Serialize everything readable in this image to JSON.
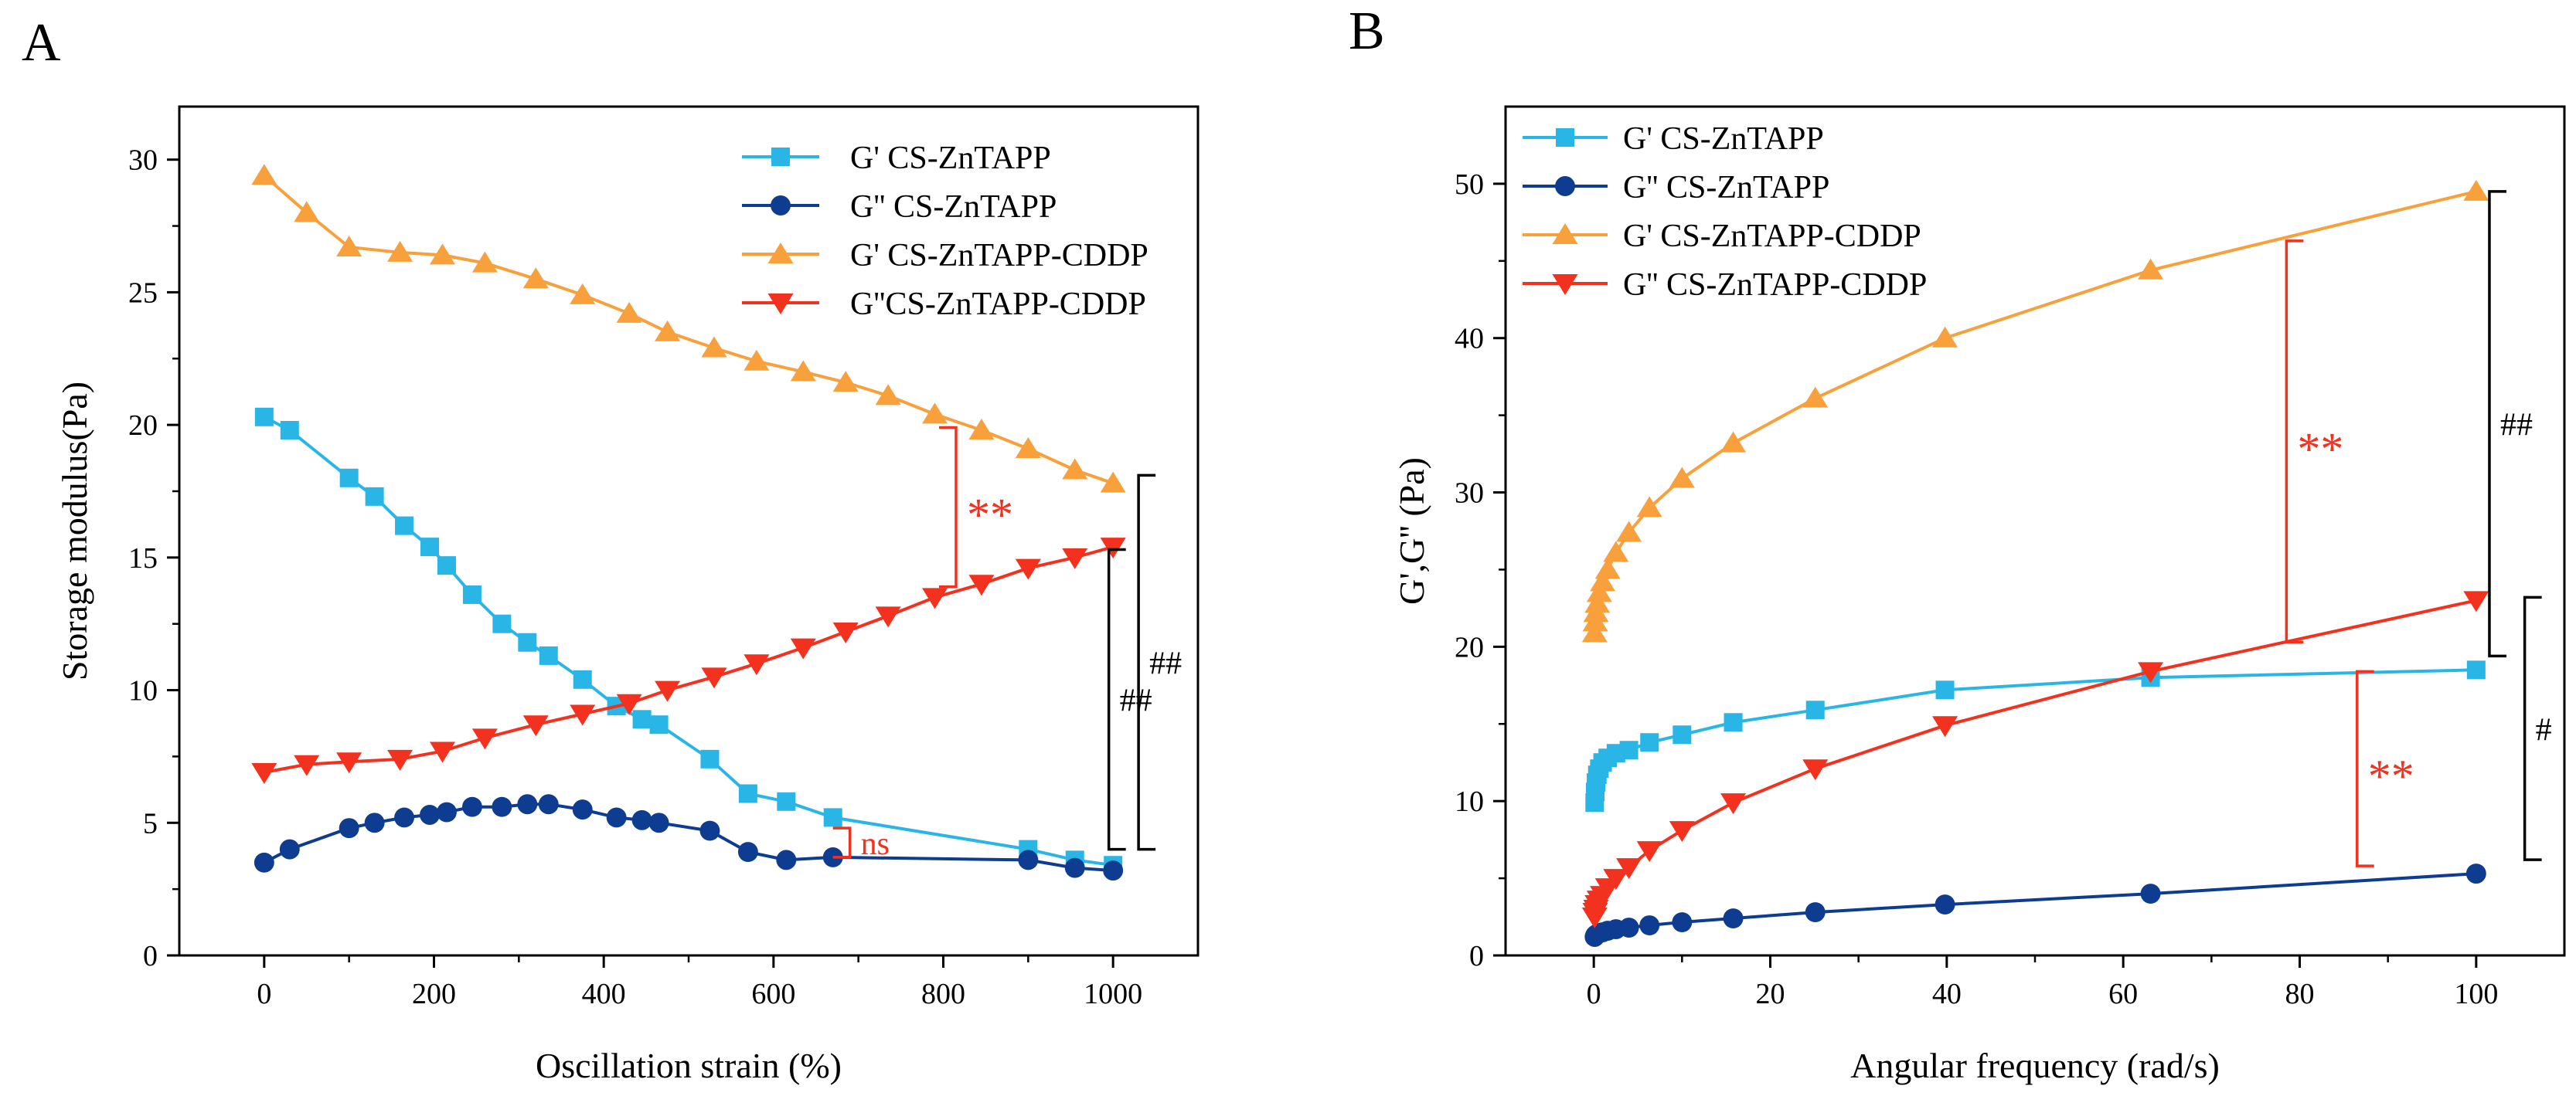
{
  "chart_data": [
    {
      "type": "line",
      "panel_label": "A",
      "xlabel": "Oscillation strain (%)",
      "ylabel": "Storage modulus(Pa)",
      "xlim": [
        -100,
        1100
      ],
      "ylim": [
        0,
        32
      ],
      "xticks": [
        0,
        200,
        400,
        600,
        800,
        1000
      ],
      "yticks": [
        0,
        5,
        10,
        15,
        20,
        25,
        30
      ],
      "grid": false,
      "legend_position": "top-right",
      "series": [
        {
          "name": "G' CS-ZnTAPP",
          "color": "#29B6E6",
          "marker": "square",
          "x": [
            0,
            30,
            100,
            130,
            165,
            195,
            215,
            245,
            280,
            310,
            335,
            375,
            415,
            445,
            465,
            525,
            570,
            615,
            670,
            900,
            955,
            1000
          ],
          "y": [
            20.3,
            19.8,
            18.0,
            17.3,
            16.2,
            15.4,
            14.7,
            13.6,
            12.5,
            11.8,
            11.3,
            10.4,
            9.4,
            8.9,
            8.7,
            7.4,
            6.1,
            5.8,
            5.2,
            4.0,
            3.6,
            3.4
          ]
        },
        {
          "name": "G'' CS-ZnTAPP",
          "color": "#0E3C91",
          "marker": "circle",
          "x": [
            0,
            30,
            100,
            130,
            165,
            195,
            215,
            245,
            280,
            310,
            335,
            375,
            415,
            445,
            465,
            525,
            570,
            615,
            670,
            900,
            955,
            1000
          ],
          "y": [
            3.5,
            4.0,
            4.8,
            5.0,
            5.2,
            5.3,
            5.4,
            5.6,
            5.6,
            5.7,
            5.7,
            5.5,
            5.2,
            5.1,
            5.0,
            4.7,
            3.9,
            3.6,
            3.7,
            3.6,
            3.3,
            3.2
          ]
        },
        {
          "name": "G' CS-ZnTAPP-CDDP",
          "color": "#F7A03C",
          "marker": "triangle-up",
          "x": [
            0,
            50,
            100,
            160,
            210,
            260,
            320,
            375,
            430,
            475,
            530,
            580,
            635,
            685,
            735,
            790,
            845,
            900,
            955,
            1000
          ],
          "y": [
            29.4,
            28.0,
            26.7,
            26.5,
            26.4,
            26.1,
            25.5,
            24.9,
            24.2,
            23.5,
            22.9,
            22.4,
            22.0,
            21.6,
            21.1,
            20.4,
            19.8,
            19.1,
            18.3,
            17.8
          ]
        },
        {
          "name": "G''CS-ZnTAPP-CDDP",
          "color": "#F2311F",
          "marker": "triangle-down",
          "x": [
            0,
            50,
            100,
            160,
            210,
            260,
            320,
            375,
            430,
            475,
            530,
            580,
            635,
            685,
            735,
            790,
            845,
            900,
            955,
            1000
          ],
          "y": [
            6.9,
            7.2,
            7.3,
            7.4,
            7.7,
            8.2,
            8.7,
            9.1,
            9.5,
            10.0,
            10.5,
            11.0,
            11.6,
            12.2,
            12.8,
            13.5,
            14.0,
            14.6,
            15.0,
            15.4
          ]
        }
      ],
      "annotations": [
        {
          "text": "**",
          "color": "#F2311F",
          "kind": "bracket-left",
          "x": 815,
          "y1": 19.9,
          "y2": 13.9
        },
        {
          "text": "ns",
          "color": "#F2311F",
          "kind": "bracket-left",
          "x": 690,
          "y1": 4.8,
          "y2": 3.7
        },
        {
          "text": "##",
          "color": "#000000",
          "kind": "bracket-right",
          "x": 995,
          "y1": 15.3,
          "y2": 4.0
        },
        {
          "text": "##",
          "color": "#000000",
          "kind": "bracket-right",
          "x": 1030,
          "y1": 18.1,
          "y2": 4.0
        }
      ]
    },
    {
      "type": "line",
      "panel_label": "B",
      "xlabel": "Angular frequency (rad/s)",
      "ylabel": "G',G'' (Pa)",
      "xlim": [
        -10,
        110
      ],
      "ylim": [
        0,
        55
      ],
      "xticks": [
        0,
        20,
        40,
        60,
        80,
        100
      ],
      "yticks": [
        0,
        10,
        20,
        30,
        40,
        50
      ],
      "grid": false,
      "legend_position": "top-left",
      "series": [
        {
          "name": "G' CS-ZnTAPP",
          "color": "#29B6E6",
          "marker": "square",
          "x": [
            0.1,
            0.16,
            0.25,
            0.4,
            0.63,
            1.0,
            1.58,
            2.51,
            3.98,
            6.31,
            10,
            15.8,
            25.1,
            39.8,
            63.1,
            100
          ],
          "y": [
            9.9,
            10.6,
            11.2,
            11.7,
            12.1,
            12.5,
            12.8,
            13.1,
            13.3,
            13.8,
            14.3,
            15.1,
            15.9,
            17.2,
            18.0,
            18.5
          ]
        },
        {
          "name": "G'' CS-ZnTAPP",
          "color": "#0E3C91",
          "marker": "circle",
          "x": [
            0.1,
            0.16,
            0.25,
            0.4,
            0.63,
            1.0,
            1.58,
            2.51,
            3.98,
            6.31,
            10,
            15.8,
            25.1,
            39.8,
            63.1,
            100
          ],
          "y": [
            1.2,
            1.3,
            1.35,
            1.4,
            1.45,
            1.5,
            1.6,
            1.7,
            1.8,
            1.95,
            2.15,
            2.4,
            2.8,
            3.3,
            4.0,
            5.3
          ]
        },
        {
          "name": "G' CS-ZnTAPP-CDDP",
          "color": "#F7A03C",
          "marker": "triangle-up",
          "x": [
            0.1,
            0.16,
            0.25,
            0.4,
            0.63,
            1.0,
            1.58,
            2.51,
            3.98,
            6.31,
            10,
            15.8,
            25.1,
            39.8,
            63.1,
            100
          ],
          "y": [
            20.9,
            21.6,
            22.2,
            22.8,
            23.5,
            24.2,
            25.0,
            26.1,
            27.4,
            29.0,
            30.9,
            33.2,
            36.1,
            40.0,
            44.4,
            49.5
          ]
        },
        {
          "name": "G'' CS-ZnTAPP-CDDP",
          "color": "#F2311F",
          "marker": "triangle-down",
          "x": [
            0.1,
            0.16,
            0.25,
            0.4,
            0.63,
            1.0,
            1.58,
            2.51,
            3.98,
            6.31,
            10,
            15.8,
            25.1,
            39.8,
            63.1,
            100
          ],
          "y": [
            2.5,
            2.8,
            3.0,
            3.3,
            3.6,
            3.9,
            4.4,
            5.0,
            5.7,
            6.8,
            8.1,
            9.9,
            12.1,
            14.9,
            18.4,
            23.0
          ]
        }
      ],
      "annotations": [
        {
          "text": "**",
          "color": "#F2311F",
          "kind": "bracket-right",
          "x": 78.5,
          "y1": 46.3,
          "y2": 20.3
        },
        {
          "text": "**",
          "color": "#F2311F",
          "kind": "bracket-right",
          "x": 86.5,
          "y1": 18.4,
          "y2": 5.8
        },
        {
          "text": "##",
          "color": "#000000",
          "kind": "bracket-right",
          "x": 101.5,
          "y1": 49.5,
          "y2": 19.4
        },
        {
          "text": "#",
          "color": "#000000",
          "kind": "bracket-right",
          "x": 105.5,
          "y1": 23.2,
          "y2": 6.2
        }
      ]
    }
  ]
}
